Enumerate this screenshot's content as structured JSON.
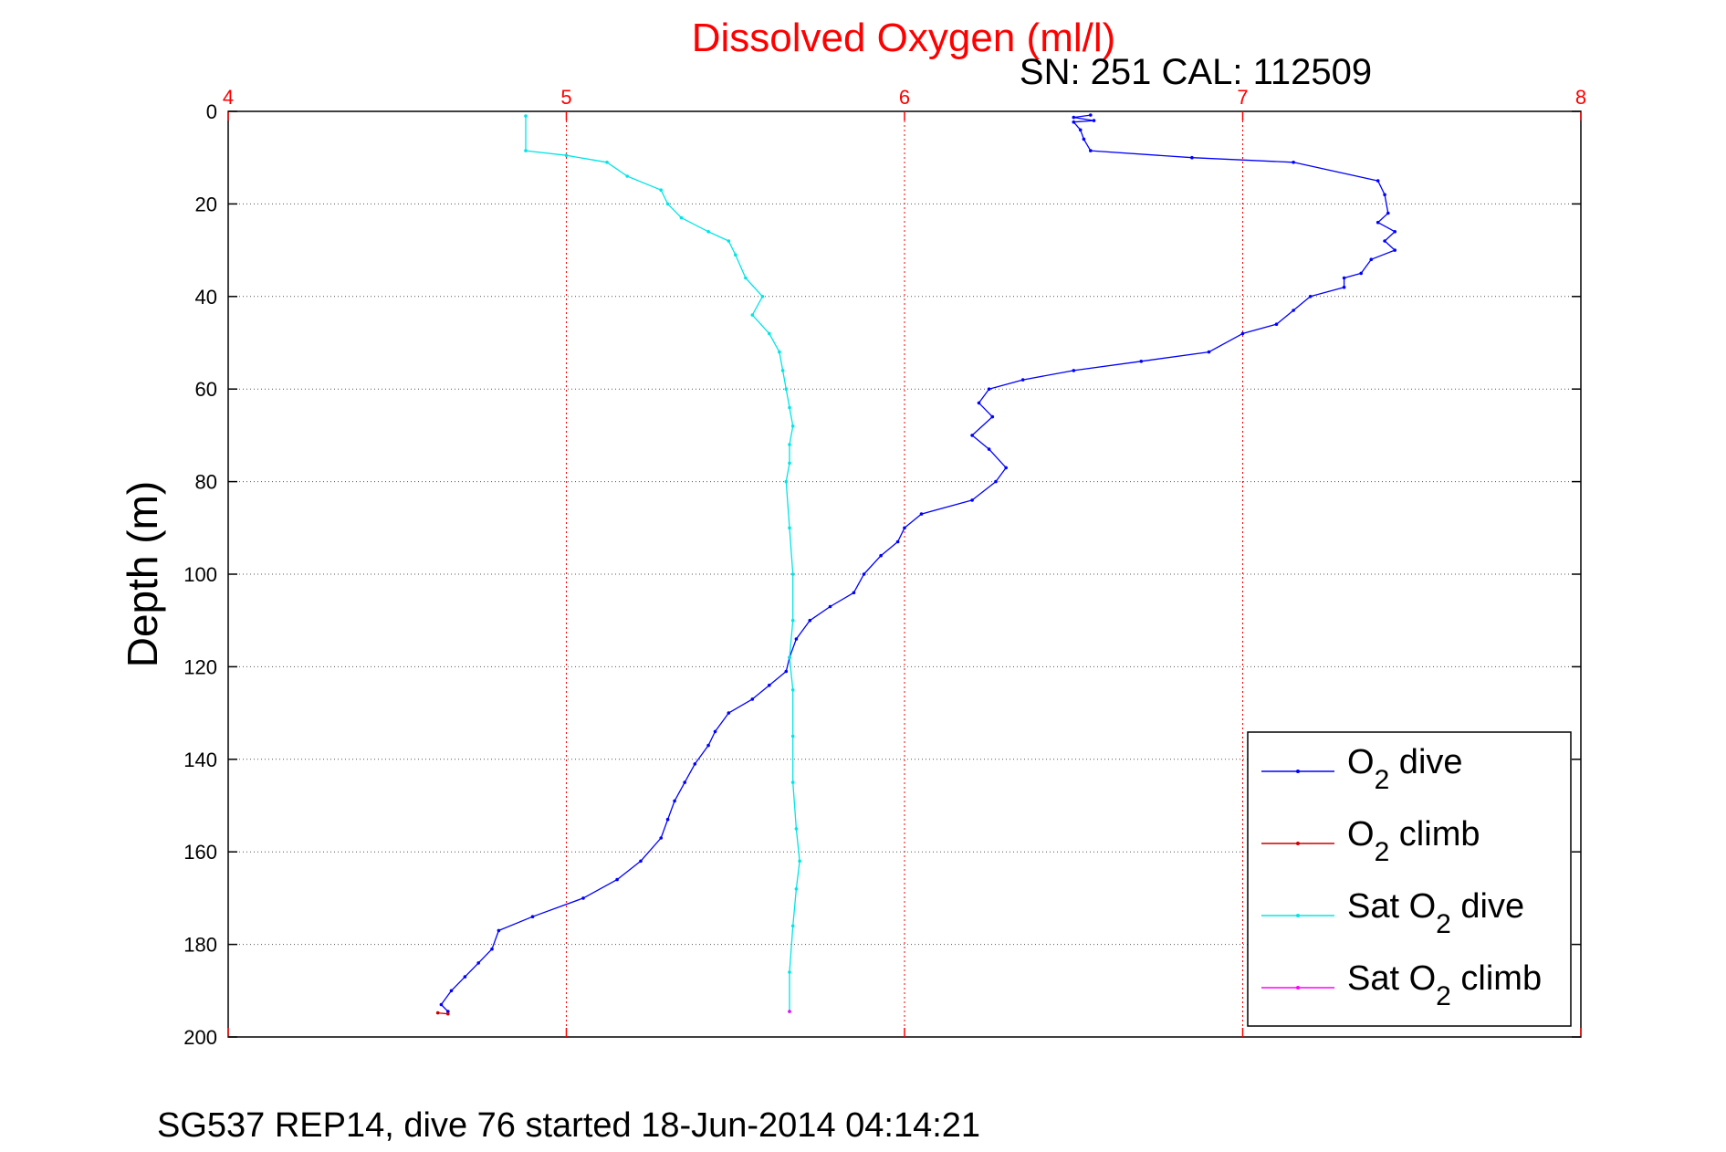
{
  "chart_data": {
    "type": "line",
    "title": "Dissolved Oxygen (ml/l)",
    "subtitle": "SN: 251  CAL: 112509",
    "ylabel": "Depth (m)",
    "footer": "SG537 REP14, dive 76 started 18-Jun-2014 04:14:21",
    "xlim": [
      4,
      8
    ],
    "ylim": [
      0,
      200
    ],
    "y_reversed": true,
    "x_ticks": [
      "4",
      "5",
      "6",
      "7",
      "8"
    ],
    "y_ticks": [
      "0",
      "20",
      "40",
      "60",
      "80",
      "100",
      "120",
      "140",
      "160",
      "180",
      "200"
    ],
    "grid": true,
    "legend_position": "bottom-right",
    "series": [
      {
        "name": "O2 dive",
        "color": "#0000ff",
        "points": [
          [
            6.55,
            0.8
          ],
          [
            6.5,
            1.3
          ],
          [
            6.56,
            2
          ],
          [
            6.5,
            2.3
          ],
          [
            6.52,
            4
          ],
          [
            6.53,
            6
          ],
          [
            6.55,
            8.5
          ],
          [
            6.85,
            10
          ],
          [
            7.15,
            11
          ],
          [
            7.4,
            15
          ],
          [
            7.42,
            18
          ],
          [
            7.43,
            22
          ],
          [
            7.4,
            24
          ],
          [
            7.45,
            26
          ],
          [
            7.42,
            28
          ],
          [
            7.45,
            30
          ],
          [
            7.38,
            32
          ],
          [
            7.35,
            35
          ],
          [
            7.3,
            36
          ],
          [
            7.3,
            38
          ],
          [
            7.2,
            40
          ],
          [
            7.15,
            43
          ],
          [
            7.1,
            46
          ],
          [
            7.0,
            48
          ],
          [
            6.9,
            52
          ],
          [
            6.7,
            54
          ],
          [
            6.5,
            56
          ],
          [
            6.35,
            58
          ],
          [
            6.25,
            60
          ],
          [
            6.22,
            63
          ],
          [
            6.26,
            66
          ],
          [
            6.2,
            70
          ],
          [
            6.25,
            73
          ],
          [
            6.3,
            77
          ],
          [
            6.27,
            80
          ],
          [
            6.2,
            84
          ],
          [
            6.05,
            87
          ],
          [
            6.0,
            90
          ],
          [
            5.98,
            93
          ],
          [
            5.93,
            96
          ],
          [
            5.88,
            100
          ],
          [
            5.85,
            104
          ],
          [
            5.78,
            107
          ],
          [
            5.72,
            110
          ],
          [
            5.68,
            114
          ],
          [
            5.66,
            118
          ],
          [
            5.65,
            121
          ],
          [
            5.6,
            124
          ],
          [
            5.55,
            127
          ],
          [
            5.48,
            130
          ],
          [
            5.44,
            134
          ],
          [
            5.42,
            137
          ],
          [
            5.38,
            141
          ],
          [
            5.35,
            145
          ],
          [
            5.32,
            149
          ],
          [
            5.3,
            153
          ],
          [
            5.28,
            157
          ],
          [
            5.22,
            162
          ],
          [
            5.15,
            166
          ],
          [
            5.05,
            170
          ],
          [
            4.9,
            174
          ],
          [
            4.8,
            177
          ],
          [
            4.78,
            181
          ],
          [
            4.74,
            184
          ],
          [
            4.7,
            187
          ],
          [
            4.66,
            190
          ],
          [
            4.63,
            193
          ],
          [
            4.65,
            194.5
          ]
        ]
      },
      {
        "name": "O2 climb",
        "color": "#cc0000",
        "points": [
          [
            4.62,
            194.8
          ],
          [
            4.65,
            195
          ]
        ]
      },
      {
        "name": "Sat O2 dive",
        "color": "#00e5e5",
        "points": [
          [
            4.88,
            1
          ],
          [
            4.88,
            8.5
          ],
          [
            5.0,
            9.5
          ],
          [
            5.12,
            11
          ],
          [
            5.18,
            14
          ],
          [
            5.28,
            17
          ],
          [
            5.3,
            20
          ],
          [
            5.34,
            23
          ],
          [
            5.42,
            26
          ],
          [
            5.48,
            28
          ],
          [
            5.5,
            31
          ],
          [
            5.53,
            36
          ],
          [
            5.58,
            40
          ],
          [
            5.55,
            44
          ],
          [
            5.6,
            48
          ],
          [
            5.63,
            52
          ],
          [
            5.64,
            56
          ],
          [
            5.65,
            60
          ],
          [
            5.66,
            64
          ],
          [
            5.67,
            68
          ],
          [
            5.66,
            72
          ],
          [
            5.66,
            76
          ],
          [
            5.65,
            80
          ],
          [
            5.66,
            90
          ],
          [
            5.67,
            100
          ],
          [
            5.67,
            110
          ],
          [
            5.66,
            118
          ],
          [
            5.67,
            125
          ],
          [
            5.67,
            135
          ],
          [
            5.67,
            145
          ],
          [
            5.68,
            155
          ],
          [
            5.69,
            162
          ],
          [
            5.68,
            168
          ],
          [
            5.67,
            176
          ],
          [
            5.66,
            186
          ],
          [
            5.66,
            194.5
          ]
        ]
      },
      {
        "name": "Sat O2 climb",
        "color": "#ff00ff",
        "points": [
          [
            5.66,
            194.5
          ]
        ]
      }
    ]
  }
}
